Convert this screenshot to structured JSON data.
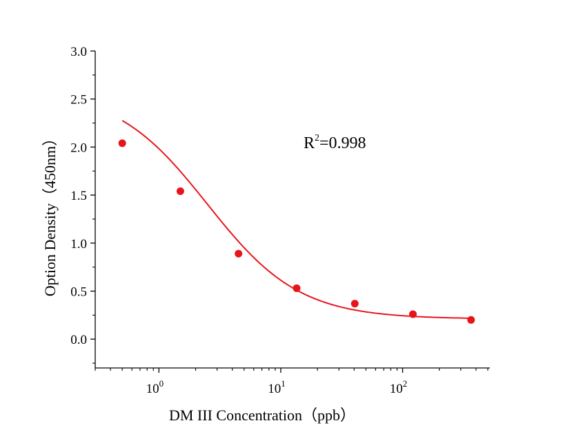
{
  "chart_data": {
    "type": "scatter",
    "title": "",
    "xlabel": "DM III Concentration（ppb）",
    "ylabel": "Option Density（450nm）",
    "x_scale": "log",
    "xlim": [
      0.3,
      520
    ],
    "ylim": [
      -0.3,
      3.0
    ],
    "x_ticks": [
      {
        "base": "10",
        "exp": "0"
      },
      {
        "base": "10",
        "exp": "1"
      },
      {
        "base": "10",
        "exp": "2"
      }
    ],
    "y_ticks": [
      "0.0",
      "0.5",
      "1.0",
      "1.5",
      "2.0",
      "2.5",
      "3.0"
    ],
    "grid": false,
    "series": [
      {
        "color": "#e8141c",
        "x": [
          0.5,
          1.5,
          4.5,
          13.5,
          40.5,
          121.5,
          364.5
        ],
        "y": [
          2.04,
          1.54,
          0.89,
          0.53,
          0.37,
          0.26,
          0.2
        ]
      }
    ],
    "fit": {
      "model": "4PL",
      "color": "#e8141c",
      "A": 2.6,
      "D": 0.21,
      "C": 2.5,
      "B": 1.15
    },
    "annotation": {
      "base": "R",
      "sup": "2",
      "rest": "=0.998"
    }
  }
}
